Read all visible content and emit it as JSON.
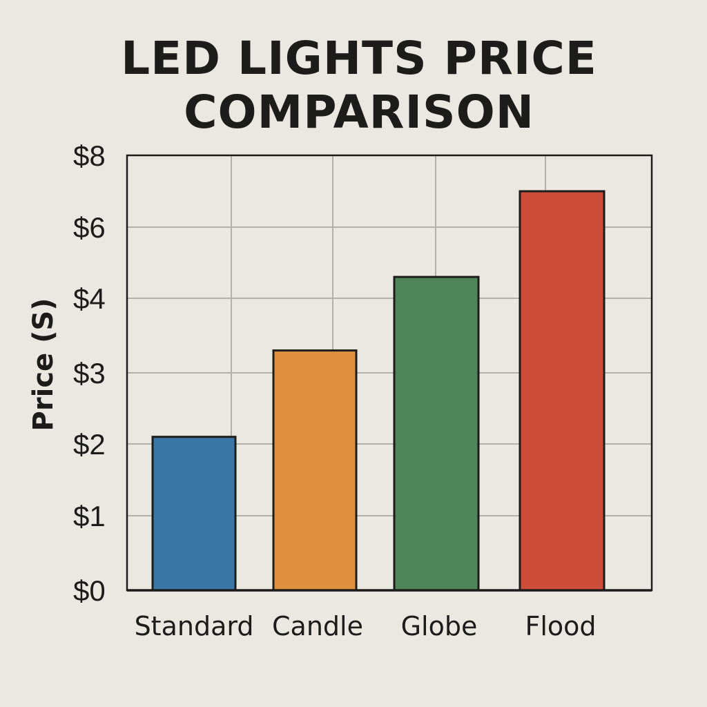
{
  "chart_data": {
    "type": "bar",
    "title_lines": [
      "LED LIGHTS PRICE",
      "COMPARISON"
    ],
    "xlabel": "",
    "ylabel": "Price (S)",
    "categories": [
      "Standard",
      "Candle",
      "Globe",
      "Flood"
    ],
    "values": [
      2.1,
      3.3,
      4.6,
      7.0
    ],
    "colors": [
      "#3a77a6",
      "#e08f3e",
      "#4f8659",
      "#cc4e39"
    ],
    "yticks": [
      "$0",
      "$1",
      "$2",
      "$3",
      "$4",
      "$6",
      "$8"
    ],
    "ylim": [
      0,
      8
    ],
    "grid": true,
    "legend": false
  }
}
